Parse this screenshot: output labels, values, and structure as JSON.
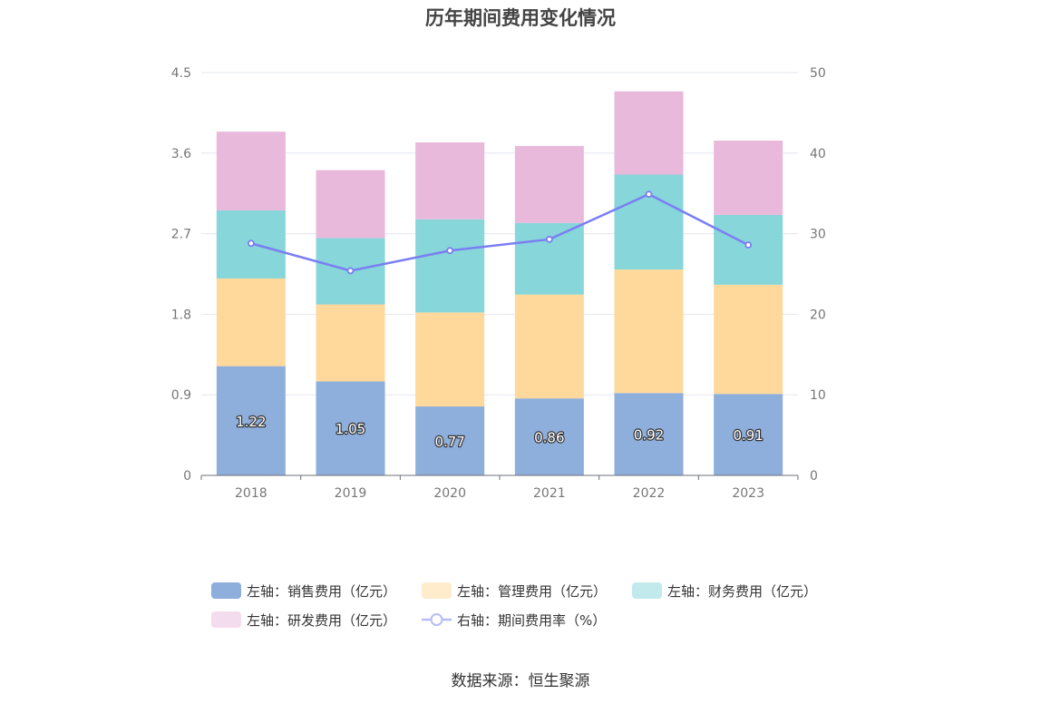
{
  "chart_data": {
    "type": "bar",
    "stacked": true,
    "title": "历年期间费用变化情况",
    "categories": [
      "2018",
      "2019",
      "2020",
      "2021",
      "2022",
      "2023"
    ],
    "series": [
      {
        "name": "左轴：销售费用（亿元）",
        "axis": "left",
        "type": "bar",
        "color": "#8eaedc",
        "values": [
          1.22,
          1.05,
          0.77,
          0.86,
          0.92,
          0.91
        ]
      },
      {
        "name": "左轴：管理费用（亿元）",
        "axis": "left",
        "type": "bar",
        "color": "#fed99b",
        "values": [
          0.98,
          0.86,
          1.05,
          1.16,
          1.38,
          1.22
        ]
      },
      {
        "name": "左轴：财务费用（亿元）",
        "axis": "left",
        "type": "bar",
        "color": "#86d6da",
        "values": [
          0.76,
          0.74,
          1.04,
          0.8,
          1.06,
          0.78
        ]
      },
      {
        "name": "左轴：研发费用（亿元）",
        "axis": "left",
        "type": "bar",
        "color": "#e8b9db",
        "values": [
          0.88,
          0.76,
          0.86,
          0.86,
          0.93,
          0.83
        ]
      },
      {
        "name": "右轴：期间费用率（%）",
        "axis": "right",
        "type": "line",
        "color": "#7b7ef2",
        "values": [
          28.8,
          25.4,
          27.9,
          29.3,
          34.9,
          28.6
        ]
      }
    ],
    "data_labels": [
      "1.22",
      "1.05",
      "0.77",
      "0.86",
      "0.92",
      "0.91"
    ],
    "y_left": {
      "range": [
        0,
        4.5
      ],
      "ticks": [
        "0",
        "0.9",
        "1.8",
        "2.7",
        "3.6",
        "4.5"
      ]
    },
    "y_right": {
      "range": [
        0,
        50
      ],
      "ticks": [
        "0",
        "10",
        "20",
        "30",
        "40",
        "50"
      ]
    },
    "grid": true,
    "legend_position": "bottom"
  },
  "source": "数据来源：恒生聚源"
}
